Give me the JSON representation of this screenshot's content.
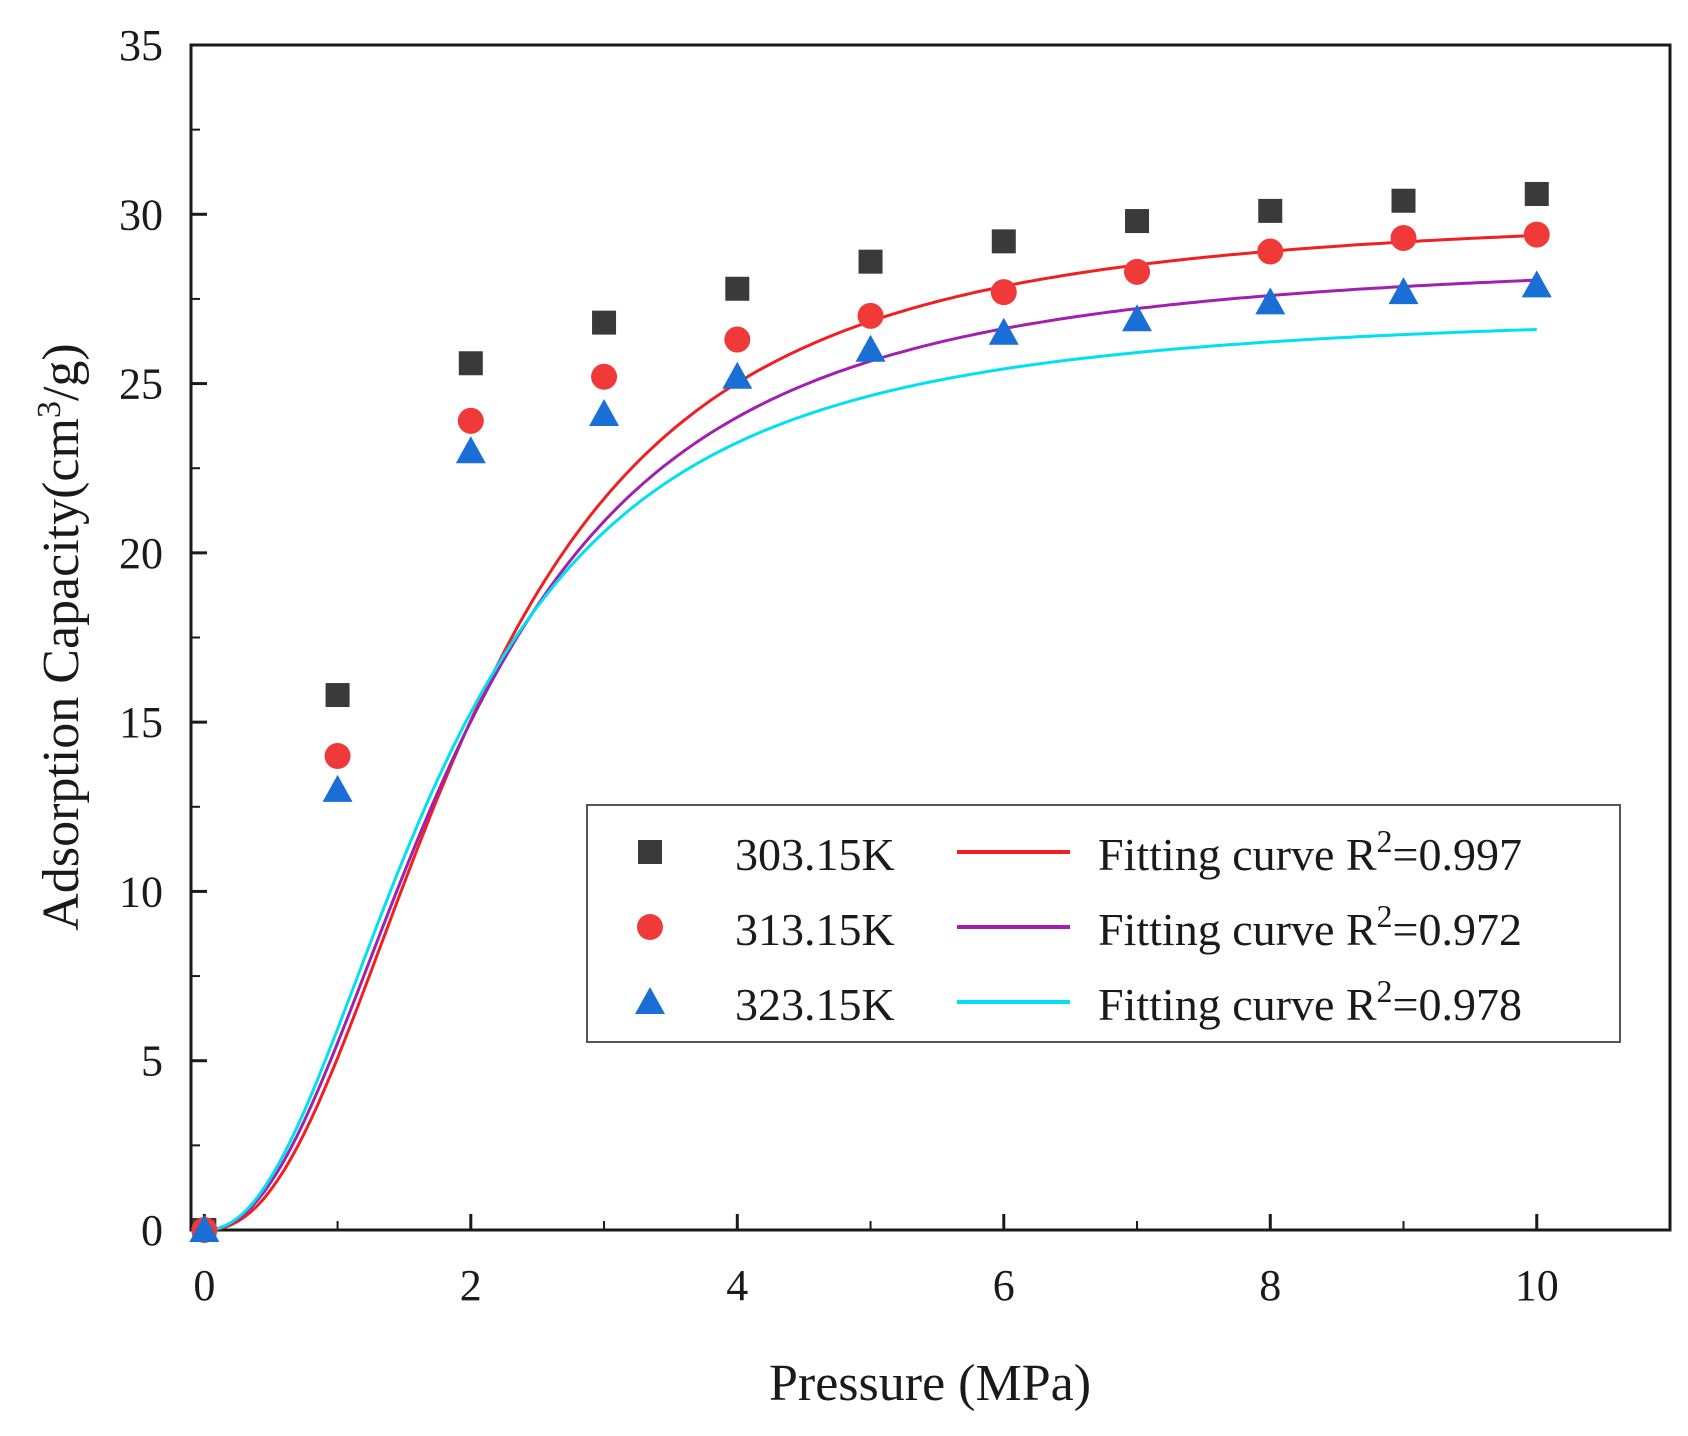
{
  "chart_data": {
    "type": "scatter",
    "xlabel": "Pressure (MPa)",
    "ylabel": "Adsorption Capacity(cm³/g)",
    "ylabel_parts": {
      "base": "Adsorption Capacity(cm",
      "sup": "3",
      "tail": "/g)"
    },
    "xlim": [
      -0.1,
      11
    ],
    "ylim": [
      0,
      35
    ],
    "xticks": [
      0,
      2,
      4,
      6,
      8,
      10
    ],
    "xtick_labels": [
      "0",
      "2",
      "4",
      "6",
      "8",
      "10"
    ],
    "yticks": [
      0,
      5,
      10,
      15,
      20,
      25,
      30,
      35
    ],
    "ytick_labels": [
      "0",
      "5",
      "10",
      "15",
      "20",
      "25",
      "30",
      "35"
    ],
    "grid": false,
    "legend_position": "lower-right",
    "x": [
      0,
      1,
      2,
      3,
      4,
      5,
      6,
      7,
      8,
      9,
      10
    ],
    "series": [
      {
        "name": "303.15K",
        "marker": "square",
        "color": "#3a3a3a",
        "values": [
          0,
          15.8,
          25.6,
          26.8,
          27.8,
          28.6,
          29.2,
          29.8,
          30.1,
          30.4,
          30.6
        ]
      },
      {
        "name": "313.15K",
        "marker": "circle",
        "color": "#f03a3a",
        "values": [
          0,
          14.0,
          23.9,
          25.2,
          26.3,
          27.0,
          27.7,
          28.3,
          28.9,
          29.3,
          29.4
        ]
      },
      {
        "name": "323.15K",
        "marker": "triangle",
        "color": "#1a6fd6",
        "values": [
          0,
          13.0,
          23.0,
          24.1,
          25.2,
          26.0,
          26.5,
          26.9,
          27.4,
          27.7,
          27.9
        ]
      }
    ],
    "fits": [
      {
        "label": "Fitting curve R",
        "sup": "2",
        "r2_text": "=0.997",
        "color": "#f02020",
        "model": {
          "qmax": 30.1,
          "k": 0.5,
          "n": 2.3
        }
      },
      {
        "label": "Fitting curve R",
        "sup": "2",
        "r2_text": "=0.972",
        "color": "#a020b0",
        "model": {
          "qmax": 28.8,
          "k": 0.52,
          "n": 2.2
        }
      },
      {
        "label": "Fitting curve R",
        "sup": "2",
        "r2_text": "=0.978",
        "color": "#00e0f0",
        "model": {
          "qmax": 27.2,
          "k": 0.56,
          "n": 2.2
        }
      }
    ]
  }
}
